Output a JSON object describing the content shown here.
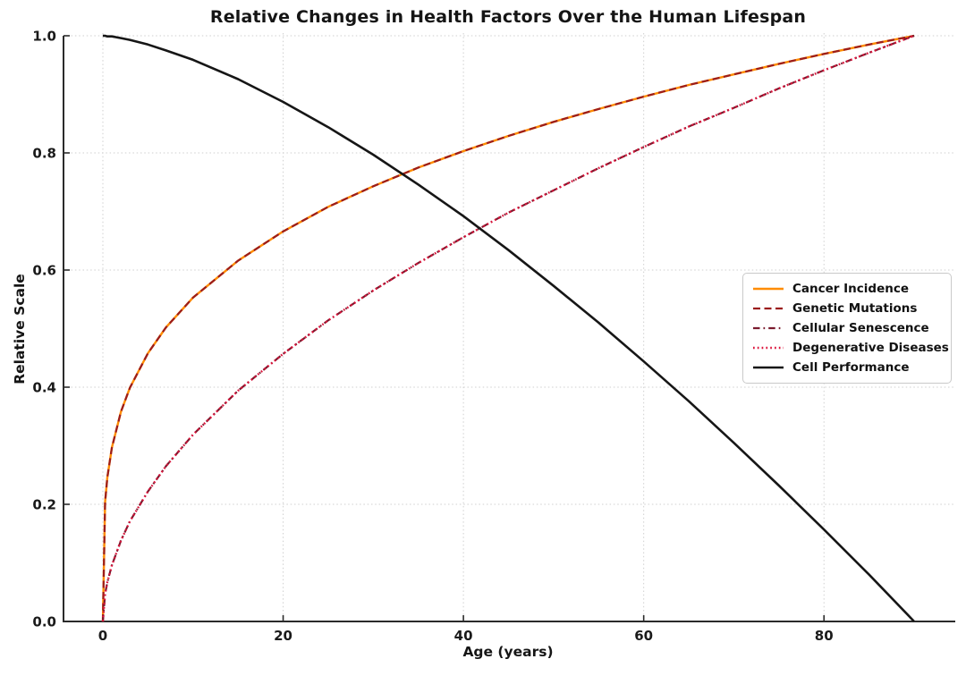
{
  "title": "Relative Changes in Health Factors Over the Human Lifespan",
  "chart_data": {
    "type": "line",
    "title": "Relative Changes in Health Factors Over the Human Lifespan",
    "xlabel": "Age (years)",
    "ylabel": "Relative Scale",
    "xlim": [
      -4.5,
      94.5
    ],
    "ylim": [
      0.0,
      1.0
    ],
    "xticks": [
      0,
      20,
      40,
      60,
      80
    ],
    "xtick_labels": [
      "0",
      "20",
      "40",
      "60",
      "80"
    ],
    "yticks": [
      0.0,
      0.2,
      0.4,
      0.6,
      0.8,
      1.0
    ],
    "ytick_labels": [
      "0.0",
      "0.2",
      "0.4",
      "0.6",
      "0.8",
      "1.0"
    ],
    "grid": "dotted",
    "grid_color": "#cfcfcf",
    "spine_color": "#2b2b2b",
    "text_color": "#1a1a1a",
    "background": "#ffffff",
    "legend_position": "center-right",
    "legend_border_color": "#c9c9c9",
    "x": [
      0,
      0.25,
      0.5,
      1,
      2,
      3,
      5,
      7,
      10,
      15,
      20,
      25,
      30,
      35,
      40,
      45,
      50,
      55,
      60,
      65,
      70,
      75,
      80,
      85,
      90
    ],
    "series": [
      {
        "name": "Cancer Incidence",
        "color": "#ff8c00",
        "style": "solid",
        "width": 2.4,
        "values": [
          0,
          0.204,
          0.246,
          0.297,
          0.358,
          0.399,
          0.458,
          0.502,
          0.553,
          0.616,
          0.666,
          0.708,
          0.743,
          0.775,
          0.803,
          0.829,
          0.853,
          0.875,
          0.896,
          0.916,
          0.934,
          0.952,
          0.969,
          0.985,
          1.0
        ]
      },
      {
        "name": "Genetic Mutations",
        "color": "#9b1c1c",
        "style": "dashed",
        "width": 2.2,
        "values": [
          0,
          0.204,
          0.246,
          0.297,
          0.358,
          0.399,
          0.458,
          0.502,
          0.553,
          0.616,
          0.666,
          0.708,
          0.743,
          0.775,
          0.803,
          0.829,
          0.853,
          0.875,
          0.896,
          0.916,
          0.934,
          0.952,
          0.969,
          0.985,
          1.0
        ]
      },
      {
        "name": "Cellular Senescence",
        "color": "#7a1b2e",
        "style": "dashdot",
        "width": 2.2,
        "values": [
          0,
          0.047,
          0.067,
          0.096,
          0.138,
          0.171,
          0.222,
          0.265,
          0.319,
          0.394,
          0.457,
          0.514,
          0.565,
          0.612,
          0.656,
          0.698,
          0.736,
          0.774,
          0.81,
          0.845,
          0.877,
          0.91,
          0.941,
          0.971,
          1.0
        ]
      },
      {
        "name": "Degenerative Diseases",
        "color": "#dc143c",
        "style": "dotted",
        "width": 2.4,
        "values": [
          0,
          0.047,
          0.067,
          0.096,
          0.138,
          0.171,
          0.222,
          0.265,
          0.319,
          0.394,
          0.457,
          0.514,
          0.565,
          0.612,
          0.656,
          0.698,
          0.736,
          0.774,
          0.81,
          0.845,
          0.877,
          0.91,
          0.941,
          0.971,
          1.0
        ]
      },
      {
        "name": "Cell Performance",
        "color": "#161616",
        "style": "solid",
        "width": 2.6,
        "values": [
          1.0,
          1.0,
          0.999,
          0.999,
          0.996,
          0.993,
          0.985,
          0.975,
          0.959,
          0.926,
          0.887,
          0.844,
          0.797,
          0.746,
          0.692,
          0.634,
          0.573,
          0.51,
          0.444,
          0.376,
          0.305,
          0.232,
          0.157,
          0.08,
          0.0
        ]
      }
    ]
  }
}
